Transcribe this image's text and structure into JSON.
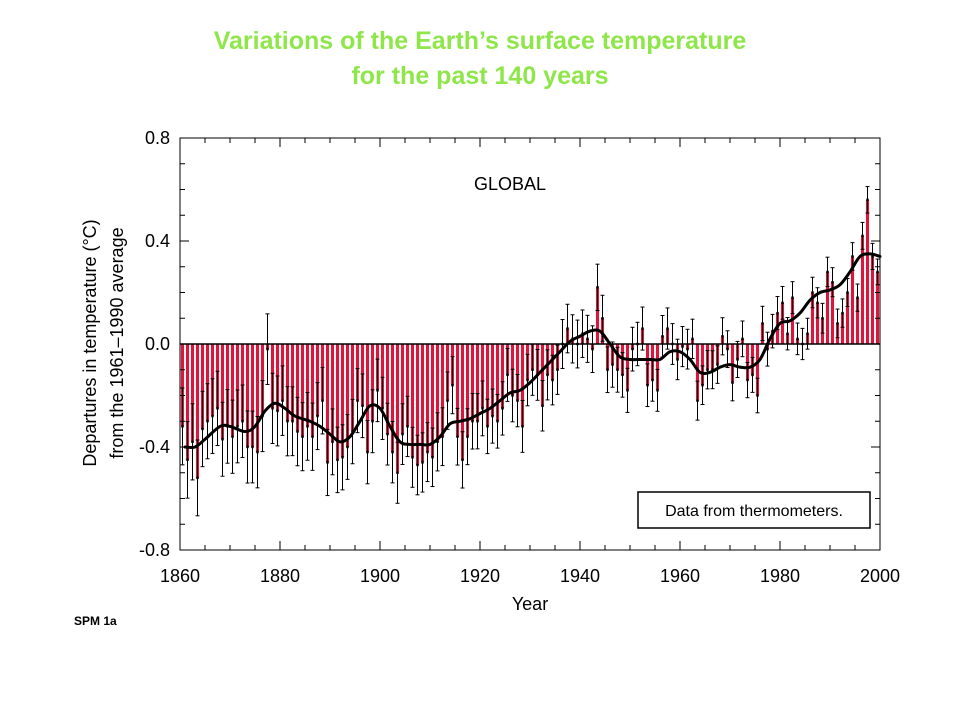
{
  "slide": {
    "title_line1": "Variations of the Earth’s surface temperature",
    "title_line2": "for the past 140 years",
    "tag": "SPM 1a"
  },
  "colors": {
    "title": "#8ee64a",
    "bars": "#d9163c",
    "smooth_line": "#000000"
  },
  "chart_data": {
    "type": "bar",
    "annotation": "GLOBAL",
    "legend_text": "Data from thermometers.",
    "xlabel": "Year",
    "ylabel_line1": "Departures in temperature (°C)",
    "ylabel_line2": "from the 1961–1990 average",
    "xlim": [
      1860,
      2000
    ],
    "ylim": [
      -0.8,
      0.8
    ],
    "x_ticks": [
      1860,
      1880,
      1900,
      1920,
      1940,
      1960,
      1980,
      2000
    ],
    "y_ticks": [
      0.8,
      0.4,
      0.0,
      -0.4,
      -0.8
    ],
    "y_tick_labels": [
      "0.8",
      "0.4",
      "0.0",
      "-0.4",
      "-0.8"
    ],
    "grid": false,
    "error_bar_halfwidth_early": 0.15,
    "error_bar_halfwidth_late": 0.05,
    "years": [
      1861,
      1862,
      1863,
      1864,
      1865,
      1866,
      1867,
      1868,
      1869,
      1870,
      1871,
      1872,
      1873,
      1874,
      1875,
      1876,
      1877,
      1878,
      1879,
      1880,
      1881,
      1882,
      1883,
      1884,
      1885,
      1886,
      1887,
      1888,
      1889,
      1890,
      1891,
      1892,
      1893,
      1894,
      1895,
      1896,
      1897,
      1898,
      1899,
      1900,
      1901,
      1902,
      1903,
      1904,
      1905,
      1906,
      1907,
      1908,
      1909,
      1910,
      1911,
      1912,
      1913,
      1914,
      1915,
      1916,
      1917,
      1918,
      1919,
      1920,
      1921,
      1922,
      1923,
      1924,
      1925,
      1926,
      1927,
      1928,
      1929,
      1930,
      1931,
      1932,
      1933,
      1934,
      1935,
      1936,
      1937,
      1938,
      1939,
      1940,
      1941,
      1942,
      1943,
      1944,
      1945,
      1946,
      1947,
      1948,
      1949,
      1950,
      1951,
      1952,
      1953,
      1954,
      1955,
      1956,
      1957,
      1958,
      1959,
      1960,
      1961,
      1962,
      1963,
      1964,
      1965,
      1966,
      1967,
      1968,
      1969,
      1970,
      1971,
      1972,
      1973,
      1974,
      1975,
      1976,
      1977,
      1978,
      1979,
      1980,
      1981,
      1982,
      1983,
      1984,
      1985,
      1986,
      1987,
      1988,
      1989,
      1990,
      1991,
      1992,
      1993,
      1994,
      1995,
      1996,
      1997,
      1998,
      1999,
      2000
    ],
    "values": [
      -0.32,
      -0.45,
      -0.38,
      -0.52,
      -0.33,
      -0.3,
      -0.28,
      -0.25,
      -0.37,
      -0.32,
      -0.36,
      -0.32,
      -0.3,
      -0.4,
      -0.4,
      -0.42,
      -0.28,
      -0.02,
      -0.25,
      -0.26,
      -0.22,
      -0.3,
      -0.3,
      -0.34,
      -0.36,
      -0.32,
      -0.36,
      -0.28,
      -0.22,
      -0.46,
      -0.38,
      -0.45,
      -0.44,
      -0.4,
      -0.34,
      -0.22,
      -0.24,
      -0.42,
      -0.3,
      -0.18,
      -0.25,
      -0.35,
      -0.42,
      -0.5,
      -0.35,
      -0.32,
      -0.44,
      -0.47,
      -0.46,
      -0.42,
      -0.44,
      -0.38,
      -0.36,
      -0.22,
      -0.16,
      -0.36,
      -0.45,
      -0.36,
      -0.3,
      -0.3,
      -0.25,
      -0.32,
      -0.28,
      -0.3,
      -0.25,
      -0.12,
      -0.2,
      -0.22,
      -0.32,
      -0.14,
      -0.1,
      -0.12,
      -0.24,
      -0.12,
      -0.14,
      -0.1,
      0.0,
      0.06,
      0.02,
      0.0,
      0.04,
      0.02,
      -0.02,
      0.22,
      0.1,
      -0.1,
      -0.08,
      -0.1,
      -0.12,
      -0.18,
      -0.02,
      0.0,
      0.06,
      -0.16,
      -0.14,
      -0.18,
      0.03,
      0.06,
      0.0,
      -0.06,
      -0.01,
      -0.02,
      0.02,
      -0.22,
      -0.16,
      -0.1,
      -0.1,
      -0.08,
      0.03,
      -0.02,
      -0.15,
      -0.06,
      0.02,
      -0.14,
      -0.12,
      -0.2,
      0.08,
      -0.02,
      0.05,
      0.12,
      0.16,
      0.04,
      0.18,
      0.02,
      0.0,
      0.04,
      0.2,
      0.16,
      0.1,
      0.28,
      0.24,
      0.08,
      0.12,
      0.2,
      0.34,
      0.18,
      0.42,
      0.56,
      0.34,
      0.28
    ],
    "smooth_line": [
      [
        1861,
        -0.4
      ],
      [
        1863,
        -0.4
      ],
      [
        1865,
        -0.37
      ],
      [
        1868,
        -0.32
      ],
      [
        1870,
        -0.32
      ],
      [
        1873,
        -0.34
      ],
      [
        1875,
        -0.32
      ],
      [
        1877,
        -0.26
      ],
      [
        1879,
        -0.23
      ],
      [
        1881,
        -0.25
      ],
      [
        1883,
        -0.28
      ],
      [
        1886,
        -0.3
      ],
      [
        1888,
        -0.32
      ],
      [
        1890,
        -0.35
      ],
      [
        1892,
        -0.38
      ],
      [
        1894,
        -0.36
      ],
      [
        1896,
        -0.3
      ],
      [
        1898,
        -0.24
      ],
      [
        1900,
        -0.25
      ],
      [
        1902,
        -0.32
      ],
      [
        1904,
        -0.38
      ],
      [
        1906,
        -0.39
      ],
      [
        1908,
        -0.39
      ],
      [
        1910,
        -0.39
      ],
      [
        1912,
        -0.36
      ],
      [
        1914,
        -0.31
      ],
      [
        1916,
        -0.3
      ],
      [
        1918,
        -0.29
      ],
      [
        1920,
        -0.27
      ],
      [
        1922,
        -0.25
      ],
      [
        1924,
        -0.22
      ],
      [
        1926,
        -0.19
      ],
      [
        1928,
        -0.18
      ],
      [
        1930,
        -0.15
      ],
      [
        1932,
        -0.11
      ],
      [
        1934,
        -0.07
      ],
      [
        1936,
        -0.03
      ],
      [
        1938,
        0.01
      ],
      [
        1940,
        0.03
      ],
      [
        1942,
        0.05
      ],
      [
        1944,
        0.05
      ],
      [
        1946,
        0.0
      ],
      [
        1948,
        -0.05
      ],
      [
        1950,
        -0.06
      ],
      [
        1952,
        -0.06
      ],
      [
        1954,
        -0.06
      ],
      [
        1956,
        -0.06
      ],
      [
        1958,
        -0.03
      ],
      [
        1960,
        -0.03
      ],
      [
        1962,
        -0.06
      ],
      [
        1964,
        -0.11
      ],
      [
        1966,
        -0.11
      ],
      [
        1968,
        -0.09
      ],
      [
        1970,
        -0.08
      ],
      [
        1972,
        -0.09
      ],
      [
        1974,
        -0.09
      ],
      [
        1976,
        -0.06
      ],
      [
        1978,
        0.02
      ],
      [
        1980,
        0.08
      ],
      [
        1982,
        0.09
      ],
      [
        1984,
        0.12
      ],
      [
        1986,
        0.17
      ],
      [
        1988,
        0.2
      ],
      [
        1990,
        0.21
      ],
      [
        1992,
        0.23
      ],
      [
        1994,
        0.28
      ],
      [
        1996,
        0.34
      ],
      [
        1998,
        0.35
      ],
      [
        2000,
        0.34
      ]
    ]
  }
}
